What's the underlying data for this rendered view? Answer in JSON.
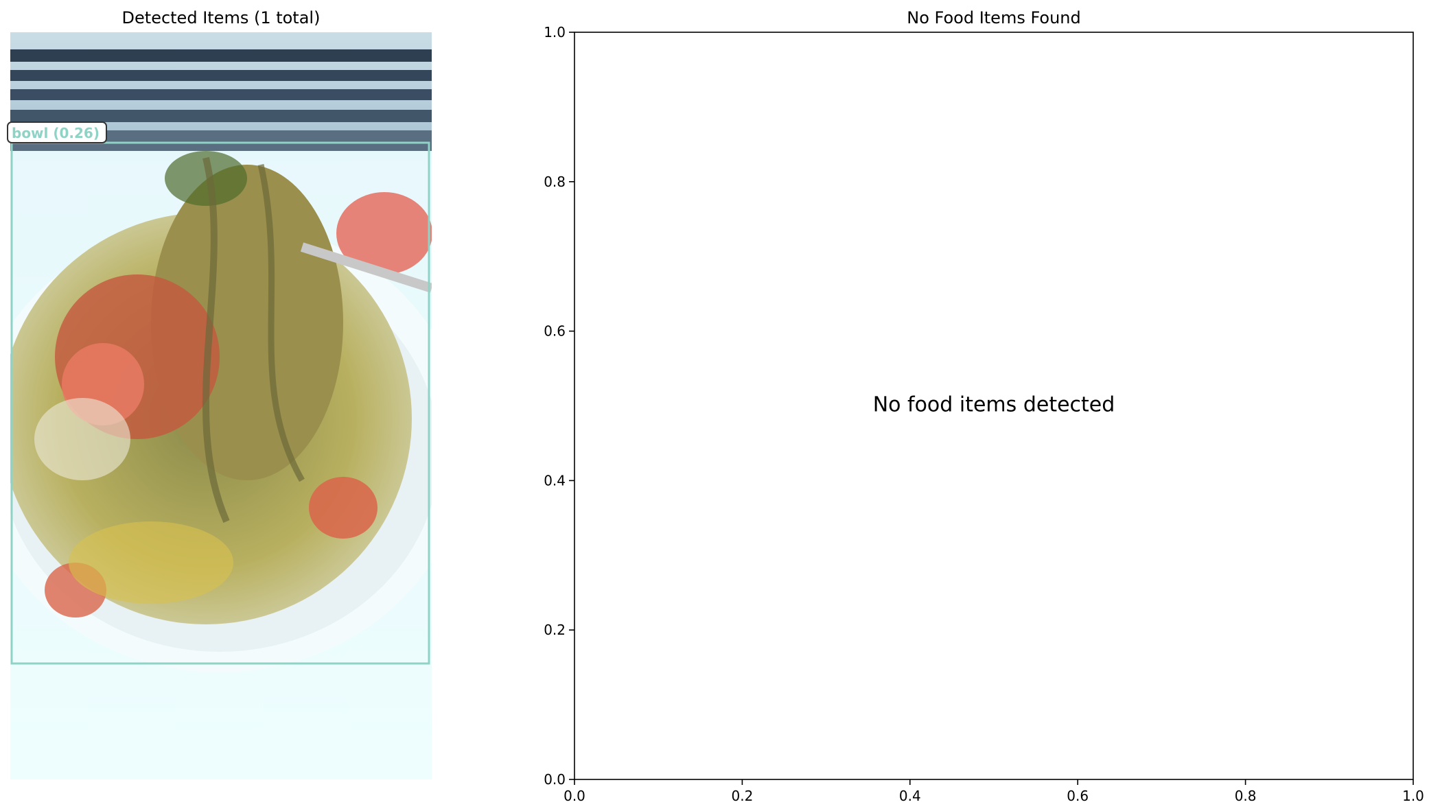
{
  "left_panel": {
    "title": "Detected Items (1 total)",
    "photo_description_icon": "food-photo",
    "detections": [
      {
        "label_text": "bowl (0.26)",
        "color": "#8fd3c6"
      }
    ]
  },
  "chart_data": {
    "type": "scatter",
    "title": "No Food Items Found",
    "annotation": "No food items detected",
    "xlabel": "",
    "ylabel": "",
    "xlim": [
      0.0,
      1.0
    ],
    "ylim": [
      0.0,
      1.0
    ],
    "x_ticks": [
      "0.0",
      "0.2",
      "0.4",
      "0.6",
      "0.8",
      "1.0"
    ],
    "y_ticks": [
      "0.0",
      "0.2",
      "0.4",
      "0.6",
      "0.8",
      "1.0"
    ],
    "series": [],
    "grid": false
  }
}
